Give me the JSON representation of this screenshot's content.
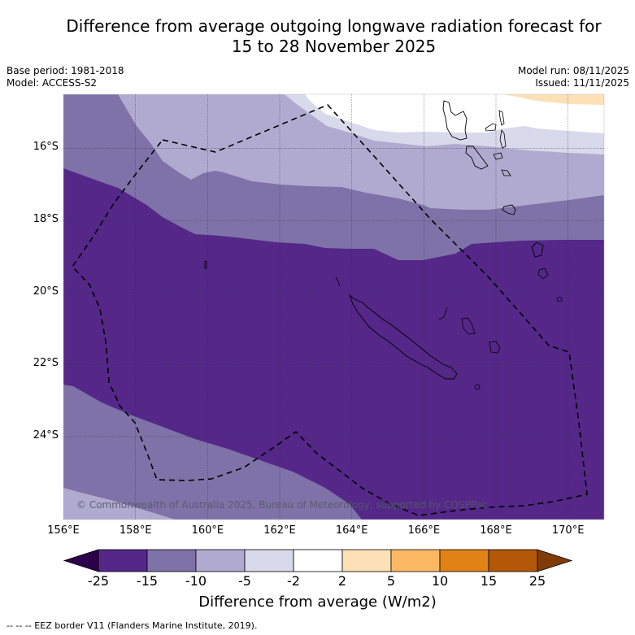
{
  "header": {
    "title_line1": "Difference from average outgoing longwave radiation forecast for",
    "title_line2": "15 to 28 November 2025",
    "base_period": "Base period: 1981-2018",
    "model": "Model: ACCESS-S2",
    "model_run": "Model run: 08/11/2025",
    "issued": "Issued: 11/11/2025"
  },
  "map": {
    "lon_range": [
      156.0,
      171.0
    ],
    "lat_range": [
      -14.5,
      -26.3
    ],
    "x_ticks": [
      "156°E",
      "158°E",
      "160°E",
      "162°E",
      "164°E",
      "166°E",
      "168°E",
      "170°E"
    ],
    "x_tick_values": [
      156,
      158,
      160,
      162,
      164,
      166,
      168,
      170
    ],
    "y_ticks": [
      "16°S",
      "18°S",
      "20°S",
      "22°S",
      "24°S"
    ],
    "y_tick_values": [
      -16,
      -18,
      -20,
      -22,
      -24
    ],
    "copyright": "© Commonwealth of Australia 2025, Bureau of Meteorology, supported by COSPPac",
    "eez_border_label": "EEZ border",
    "regions": [
      "New Caledonia",
      "Vanuatu"
    ]
  },
  "colorbar": {
    "label": "Difference from average (W/m2)",
    "ticks": [
      "-25",
      "-15",
      "-10",
      "-5",
      "-2",
      "2",
      "5",
      "10",
      "15",
      "25"
    ],
    "bins": [
      {
        "range": "< -25",
        "color": "#2d004b"
      },
      {
        "range": "-25 to -15",
        "color": "#542788"
      },
      {
        "range": "-15 to -10",
        "color": "#7f72a8"
      },
      {
        "range": "-10 to -5",
        "color": "#b1aad0"
      },
      {
        "range": "-5 to -2",
        "color": "#d8d9ea"
      },
      {
        "range": "-2 to 2",
        "color": "#ffffff"
      },
      {
        "range": "2 to 5",
        "color": "#fee0b6"
      },
      {
        "range": "5 to 10",
        "color": "#fdb863"
      },
      {
        "range": "10 to 15",
        "color": "#e08214"
      },
      {
        "range": "15 to 25",
        "color": "#b35806"
      },
      {
        "range": "> 25",
        "color": "#7f3b08"
      }
    ]
  },
  "footnote": "--  --  -- EEZ border V11 (Flanders Marine Institute, 2019)."
}
